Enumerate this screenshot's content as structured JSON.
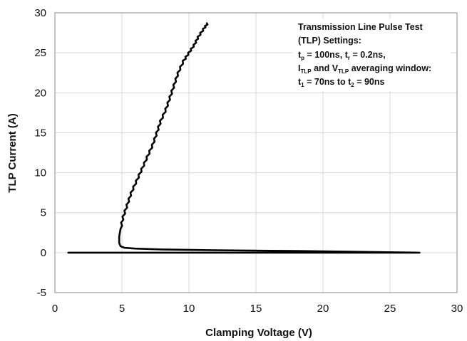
{
  "chart_data": {
    "type": "line",
    "title": "",
    "xlabel": "Clamping Voltage (V)",
    "ylabel": "TLP Current (A)",
    "xlim": [
      0,
      30
    ],
    "ylim": [
      -5,
      30
    ],
    "x_ticks": [
      0,
      5,
      10,
      15,
      20,
      25,
      30
    ],
    "y_ticks": [
      -5,
      0,
      5,
      10,
      15,
      20,
      25,
      30
    ],
    "x_tick_labels": [
      "0",
      "5",
      "10",
      "15",
      "20",
      "25",
      "30"
    ],
    "y_tick_labels": [
      "-5",
      "0",
      "5",
      "10",
      "15",
      "20",
      "25",
      "30"
    ],
    "grid": true,
    "legend": "none",
    "series": [
      {
        "name": "",
        "color": "#000000",
        "x": [
          1.0,
          27.2,
          18.0,
          12.0,
          8.0,
          6.0,
          5.2,
          4.9,
          4.8,
          4.8,
          4.9,
          5.1,
          5.4,
          5.7,
          6.1,
          6.5,
          6.9,
          7.3,
          7.6,
          7.9,
          8.3,
          8.6,
          8.9,
          9.2,
          9.6,
          10.0,
          10.4,
          10.7,
          11.1,
          11.4
        ],
        "y": [
          0.0,
          0.0,
          0.2,
          0.3,
          0.4,
          0.5,
          0.6,
          0.8,
          1.2,
          2.0,
          3.0,
          4.5,
          6.0,
          7.5,
          9.0,
          10.5,
          12.0,
          13.5,
          15.0,
          16.5,
          18.0,
          19.5,
          21.0,
          22.5,
          24.0,
          25.0,
          26.0,
          27.0,
          28.0,
          28.7
        ]
      }
    ],
    "annotation": {
      "line1": "Transmission Line Pulse Test",
      "line2": "(TLP) Settings:",
      "line3": {
        "a": "t",
        "a_sub": "p",
        "b": " = 100ns, t",
        "b_sub": "r",
        "c": " = 0.2ns,"
      },
      "line4": {
        "a": "I",
        "a_sub": "TLP",
        "b": " and V",
        "b_sub": "TLP",
        "c": " averaging window:"
      },
      "line5": {
        "a": "t",
        "a_sub": "1",
        "b": " = 70ns to t",
        "b_sub": "2",
        "c": " = 90ns"
      }
    }
  }
}
